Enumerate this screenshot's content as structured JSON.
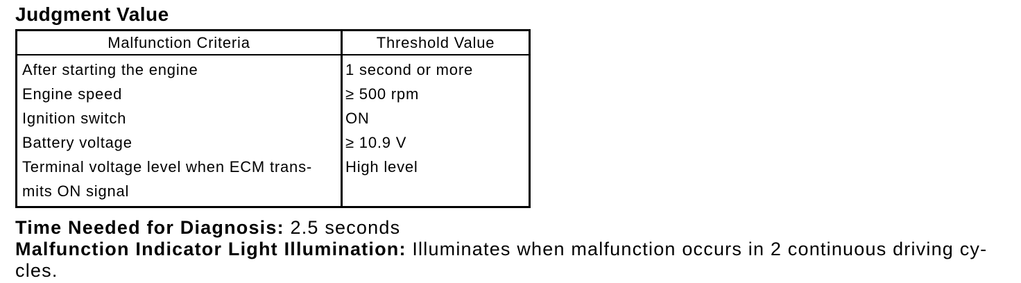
{
  "title": "Judgment Value",
  "table": {
    "headers": [
      "Malfunction Criteria",
      "Threshold Value"
    ],
    "rows": [
      {
        "criteria": "After starting the engine",
        "threshold": "1 second or more"
      },
      {
        "criteria": "Engine speed",
        "threshold": "≥ 500 rpm"
      },
      {
        "criteria": "Ignition switch",
        "threshold": "ON"
      },
      {
        "criteria": "Battery voltage",
        "threshold": "≥ 10.9 V"
      },
      {
        "criteria": "Terminal voltage level when ECM trans-\nmits ON signal",
        "threshold": "High level"
      }
    ]
  },
  "diagnosis_time": {
    "label": "Time Needed for Diagnosis:",
    "value": " 2.5 seconds"
  },
  "mil_illumination": {
    "label": "Malfunction Indicator Light Illumination:",
    "text_line1": " Illuminates when malfunction occurs in 2 continuous driving cy-",
    "text_line2": "cles."
  },
  "colors": {
    "text": "#000000",
    "background": "#ffffff",
    "border": "#000000"
  }
}
